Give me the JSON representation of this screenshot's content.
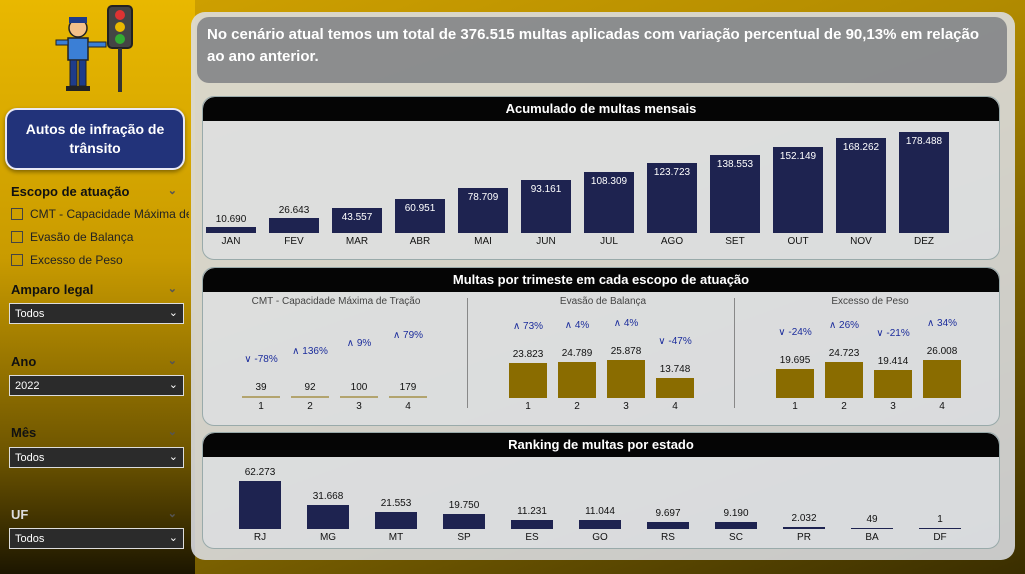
{
  "sidebar": {
    "title": "Autos de infração de trânsito",
    "scope": {
      "label": "Escopo de atuação",
      "options": [
        "CMT - Capacidade Máxima de Tração",
        "Evasão de Balança",
        "Excesso de Peso"
      ]
    },
    "amparo": {
      "label": "Amparo legal",
      "value": "Todos"
    },
    "ano": {
      "label": "Ano",
      "value": "2022"
    },
    "mes": {
      "label": "Mês",
      "value": "Todos"
    },
    "uf": {
      "label": "UF",
      "value": "Todos"
    }
  },
  "headline": {
    "text": "No cenário atual temos um total de  376.515 multas aplicadas com variação percentual de 90,13% em relação ao ano anterior."
  },
  "colors": {
    "navy": "#1e2350",
    "gold": "#8a6c00",
    "accent": "#1c2d9c"
  },
  "monthly": {
    "title": "Acumulado de multas mensais",
    "chart_data": {
      "type": "bar",
      "categories": [
        "JAN",
        "FEV",
        "MAR",
        "ABR",
        "MAI",
        "JUN",
        "JUL",
        "AGO",
        "SET",
        "OUT",
        "NOV",
        "DEZ"
      ],
      "values": [
        10690,
        26643,
        43557,
        60951,
        78709,
        93161,
        108309,
        123723,
        138553,
        152149,
        168262,
        178488
      ],
      "labels": [
        "10.690",
        "26.643",
        "43.557",
        "60.951",
        "78.709",
        "93.161",
        "108.309",
        "123.723",
        "138.553",
        "152.149",
        "168.262",
        "178.488"
      ]
    }
  },
  "quarterly": {
    "title": "Multas por trimeste em cada escopo de atuação",
    "groups": [
      {
        "name": "CMT - Capacidade Máxima de Tração",
        "quarters": [
          "1",
          "2",
          "3",
          "4"
        ],
        "values": [
          39,
          92,
          100,
          179
        ],
        "labels": [
          "39",
          "92",
          "100",
          "179"
        ],
        "changes": [
          "-78%",
          "136%",
          "9%",
          "79%"
        ],
        "directions": [
          "down",
          "up",
          "up",
          "up"
        ]
      },
      {
        "name": "Evasão de Balança",
        "quarters": [
          "1",
          "2",
          "3",
          "4"
        ],
        "values": [
          23823,
          24789,
          25878,
          13748
        ],
        "labels": [
          "23.823",
          "24.789",
          "25.878",
          "13.748"
        ],
        "changes": [
          "73%",
          "4%",
          "4%",
          "-47%"
        ],
        "directions": [
          "up",
          "up",
          "up",
          "down"
        ]
      },
      {
        "name": "Excesso de Peso",
        "quarters": [
          "1",
          "2",
          "3",
          "4"
        ],
        "values": [
          19695,
          24723,
          19414,
          26008
        ],
        "labels": [
          "19.695",
          "24.723",
          "19.414",
          "26.008"
        ],
        "changes": [
          "-24%",
          "26%",
          "-21%",
          "34%"
        ],
        "directions": [
          "down",
          "up",
          "down",
          "up"
        ]
      }
    ]
  },
  "ranking": {
    "title": "Ranking de multas por estado",
    "chart_data": {
      "type": "bar",
      "categories": [
        "RJ",
        "MG",
        "MT",
        "SP",
        "ES",
        "GO",
        "RS",
        "SC",
        "PR",
        "BA",
        "DF"
      ],
      "values": [
        62273,
        31668,
        21553,
        19750,
        11231,
        11044,
        9697,
        9190,
        2032,
        49,
        1
      ],
      "labels": [
        "62.273",
        "31.668",
        "21.553",
        "19.750",
        "11.231",
        "11.044",
        "9.697",
        "9.190",
        "2.032",
        "49",
        "1"
      ]
    }
  }
}
